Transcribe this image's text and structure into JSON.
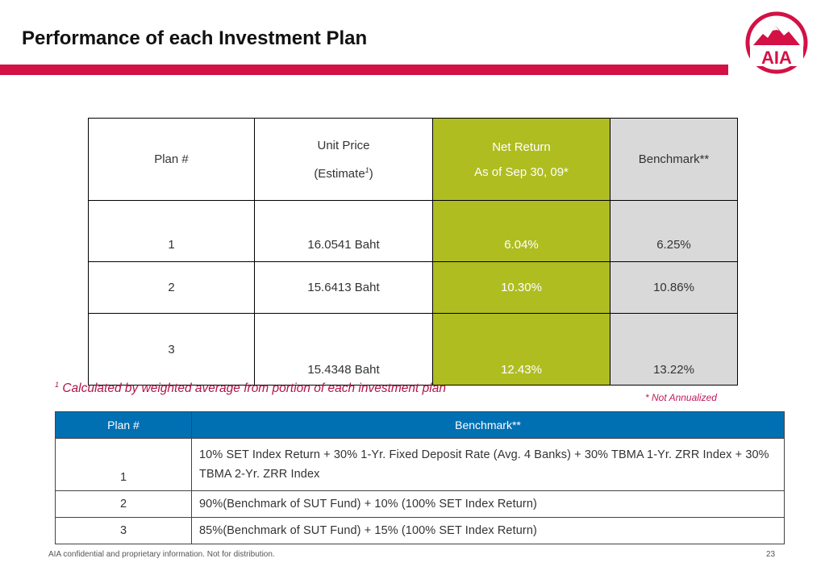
{
  "slide": {
    "title": "Performance of each Investment Plan",
    "footer": "AIA confidential and proprietary information. Not for distribution.",
    "page_number": "23",
    "logo_text": "AIA",
    "colors": {
      "brand_red": "#d31145",
      "return_green": "#afbd21",
      "benchmark_grey": "#d9d9d9",
      "header_blue": "#0070b3"
    }
  },
  "performance_table": {
    "headers": {
      "plan": "Plan #",
      "unit_price_line1": "Unit Price",
      "unit_price_line2_prefix": "(Estimate",
      "unit_price_sup": "1",
      "unit_price_line2_suffix": ")",
      "net_return_line1": "Net Return",
      "net_return_line2": "As of Sep 30, 09*",
      "benchmark": "Benchmark**"
    },
    "rows": [
      {
        "plan": "1",
        "unit_price": "16.0541 Baht",
        "net_return": "6.04%",
        "benchmark": "6.25%"
      },
      {
        "plan": "2",
        "unit_price": "15.6413 Baht",
        "net_return": "10.30%",
        "benchmark": "10.86%"
      },
      {
        "plan": "3",
        "unit_price": "15.4348 Baht",
        "net_return": "12.43%",
        "benchmark": "13.22%"
      }
    ]
  },
  "notes": {
    "footnote_sup": "1",
    "footnote": "Calculated by weighted average from portion of each investment plan",
    "not_annualized": "*  Not Annualized"
  },
  "benchmark_table": {
    "headers": {
      "plan": "Plan #",
      "benchmark": "Benchmark**"
    },
    "rows": [
      {
        "plan": "1",
        "description": "10% SET Index Return + 30% 1-Yr. Fixed Deposit Rate (Avg. 4 Banks) + 30% TBMA 1-Yr. ZRR Index + 30% TBMA 2-Yr. ZRR Index"
      },
      {
        "plan": "2",
        "description": "90%(Benchmark of SUT Fund) + 10% (100% SET Index Return)"
      },
      {
        "plan": "3",
        "description": "85%(Benchmark of SUT Fund) + 15% (100% SET Index Return)"
      }
    ]
  }
}
